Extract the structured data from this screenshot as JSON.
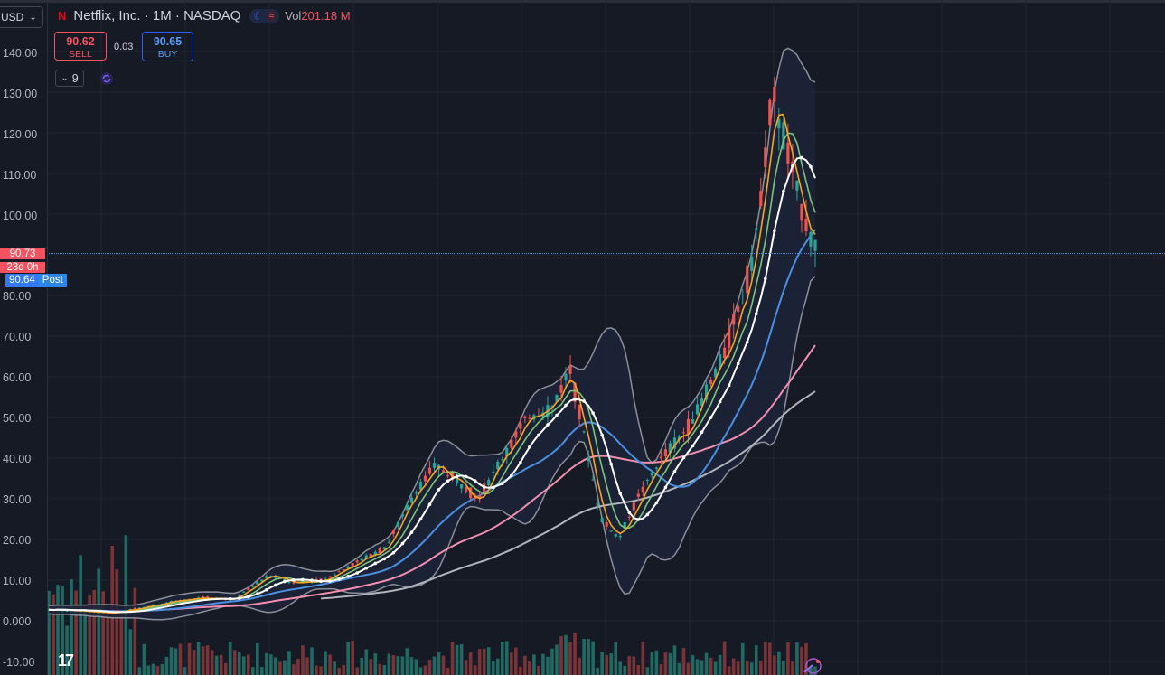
{
  "header": {
    "title": "Netflix, Inc. · 1M · NASDAQ",
    "volume_label": "Vol",
    "volume_value": "201.18 M"
  },
  "currency": {
    "selected": "USD"
  },
  "trade": {
    "sell_price": "90.62",
    "sell_label": "SELL",
    "spread": "0.03",
    "buy_price": "90.65",
    "buy_label": "BUY"
  },
  "indicators_collapse": {
    "count": "9"
  },
  "price_axis": {
    "ticks": [
      "140.00",
      "130.00",
      "120.00",
      "110.00",
      "100.00",
      "80.00",
      "70.00",
      "60.00",
      "50.00",
      "40.00",
      "30.00",
      "20.00",
      "10.00",
      "0.000",
      "-10.00"
    ],
    "last_price": "90.73",
    "countdown": "23d 0h",
    "post_price": "90.64",
    "post_label": "Post"
  },
  "colors": {
    "up": "#26a69a",
    "down": "#ef5350",
    "ema_short": "#f5a623",
    "ema_mid": "#7bc67b",
    "sma_white": "#ffffff",
    "ma_blue": "#4a90e2",
    "ma_pink": "#f48fb1",
    "ma_gray": "#b0b4bc",
    "bollinger": "#8b8f98"
  },
  "chart_data": {
    "type": "candlestick",
    "title": "Netflix, Inc. · 1M · NASDAQ",
    "ylim": [
      -12,
      145
    ],
    "series": [
      {
        "name": "price",
        "values": [
          [
            0.0,
            2.5
          ],
          [
            0.05,
            2.2
          ],
          [
            0.1,
            1.8
          ],
          [
            0.15,
            2.8
          ],
          [
            0.2,
            4.5
          ],
          [
            0.25,
            5.5
          ],
          [
            0.3,
            5.0
          ],
          [
            0.33,
            8
          ],
          [
            0.36,
            11
          ],
          [
            0.4,
            9
          ],
          [
            0.45,
            10
          ],
          [
            0.5,
            14
          ],
          [
            0.55,
            18
          ],
          [
            0.6,
            32
          ],
          [
            0.63,
            38
          ],
          [
            0.66,
            35
          ],
          [
            0.7,
            30
          ],
          [
            0.74,
            40
          ],
          [
            0.78,
            50
          ],
          [
            0.82,
            52
          ],
          [
            0.85,
            62
          ],
          [
            0.87,
            48
          ],
          [
            0.9,
            25
          ],
          [
            0.93,
            20
          ],
          [
            0.96,
            30
          ],
          [
            1.0,
            40
          ],
          [
            1.03,
            45
          ],
          [
            1.06,
            52
          ],
          [
            1.1,
            65
          ],
          [
            1.15,
            90
          ],
          [
            1.18,
            130
          ],
          [
            1.2,
            118
          ],
          [
            1.23,
            100
          ],
          [
            1.25,
            92
          ]
        ]
      }
    ]
  }
}
